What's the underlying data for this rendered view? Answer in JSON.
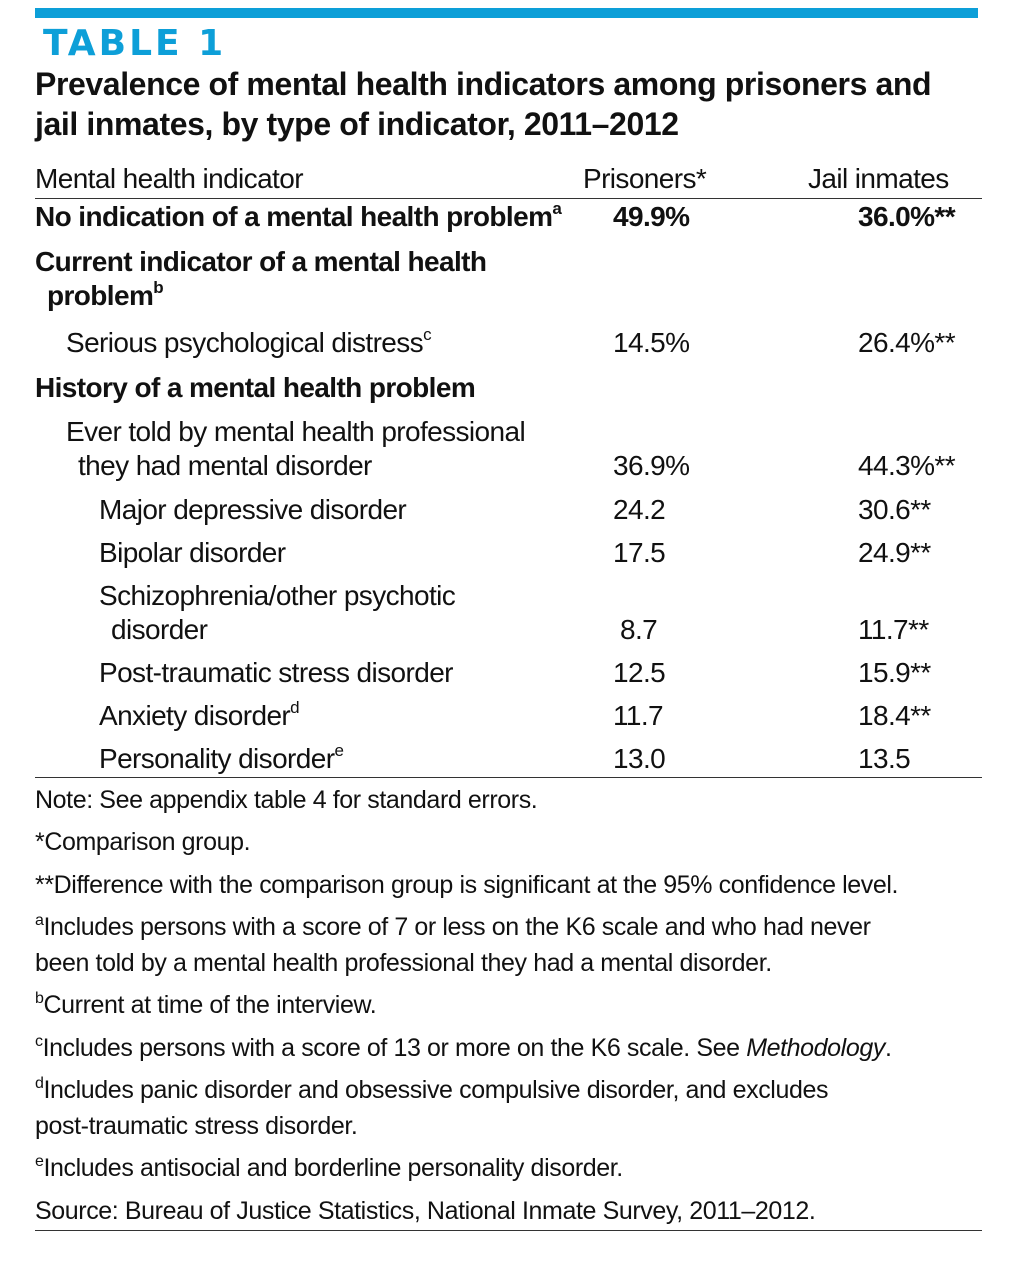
{
  "accent_color": "#0d9fd8",
  "table_label": "TABLE 1",
  "title_line1": "Prevalence of mental health indicators among prisoners and",
  "title_line2": "jail inmates, by type of indicator, 2011–2012",
  "columns": {
    "indicator": "Mental health indicator",
    "prisoners": "Prisoners*",
    "jail": "Jail inmates"
  },
  "rows": [
    {
      "label": "No indication of a mental health problem",
      "sup": "a",
      "prisoners": "49.9%",
      "jail": "36.0%**"
    },
    {
      "label": "Current indicator of a mental health",
      "label2": "problem",
      "sup": "b",
      "prisoners": "",
      "jail": ""
    },
    {
      "label": "Serious psychological distress",
      "sup": "c",
      "prisoners": "14.5%",
      "jail": "26.4%**"
    },
    {
      "label": "History of a mental health problem",
      "sup": "",
      "prisoners": "",
      "jail": ""
    },
    {
      "label": "Ever told by mental health professional",
      "label2": "they had mental disorder",
      "sup": "",
      "prisoners": "36.9%",
      "jail": "44.3%**"
    },
    {
      "label": "Major depressive disorder",
      "sup": "",
      "prisoners": "24.2",
      "jail": "30.6**"
    },
    {
      "label": "Bipolar disorder",
      "sup": "",
      "prisoners": "17.5",
      "jail": "24.9**"
    },
    {
      "label": "Schizophrenia/other psychotic",
      "label2": "disorder",
      "sup": "",
      "prisoners": "8.7",
      "jail": "11.7**"
    },
    {
      "label": "Post-traumatic stress disorder",
      "sup": "",
      "prisoners": "12.5",
      "jail": "15.9**"
    },
    {
      "label": "Anxiety disorder",
      "sup": "d",
      "prisoners": "11.7",
      "jail": "18.4**"
    },
    {
      "label": "Personality disorder",
      "sup": "e",
      "prisoners": "13.0",
      "jail": "13.5"
    }
  ],
  "notes": [
    {
      "sup": "",
      "text": "Note: See appendix table 4 for standard errors."
    },
    {
      "sup": "",
      "text": "*Comparison group."
    },
    {
      "sup": "",
      "text": "**Difference with the comparison group is significant at the 95% confidence level."
    },
    {
      "sup": "a",
      "text": "Includes persons with a score of 7 or less on the K6 scale and who had never",
      "text2": "been told by a mental health professional they had a mental disorder."
    },
    {
      "sup": "b",
      "text": "Current at time of the interview."
    },
    {
      "sup": "c",
      "text": "Includes persons with a score of 13 or more on the K6 scale. See ",
      "italic": "Methodology",
      "after": "."
    },
    {
      "sup": "d",
      "text": "Includes panic disorder and obsessive compulsive disorder, and excludes",
      "text2": "post-traumatic stress disorder."
    },
    {
      "sup": "e",
      "text": "Includes antisocial and borderline personality disorder."
    },
    {
      "sup": "",
      "text": "Source: Bureau of Justice Statistics, National Inmate Survey, 2011–2012."
    }
  ]
}
